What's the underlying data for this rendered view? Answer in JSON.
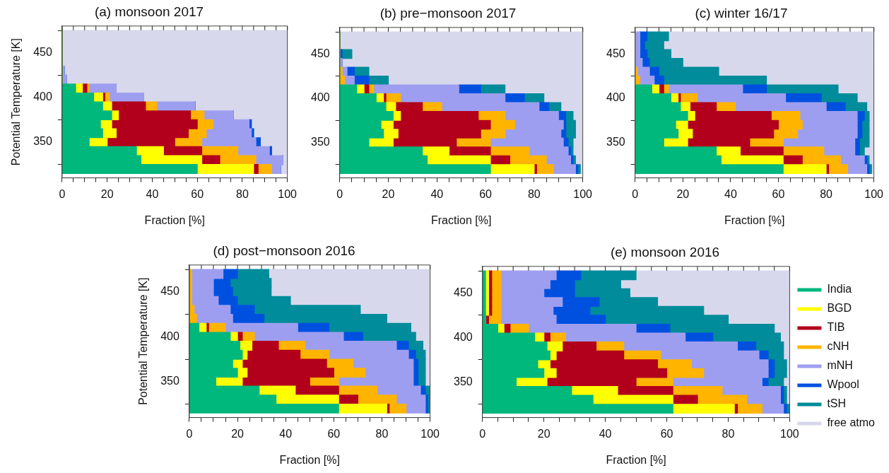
{
  "chart_data": [
    {
      "type": "bar",
      "orientation": "horizontal",
      "stacked": true,
      "title": "(a) monsoon 2017",
      "xlabel": "Fraction [%]",
      "ylabel": "Potential Temperature [K]",
      "x": [
        320,
        330,
        340,
        350,
        360,
        370,
        380,
        390,
        400,
        410,
        420,
        430,
        440,
        450,
        460,
        470
      ],
      "xlim": [
        0,
        100
      ],
      "xticks": [
        0,
        {
          "value": 5,
          "label": null
        },
        20,
        {
          "value": 10,
          "label": null
        },
        {
          "value": 15,
          "label": null
        },
        {
          "value": 25,
          "label": null
        },
        {
          "value": 30,
          "label": null
        },
        {
          "value": 35,
          "label": null
        },
        40,
        {
          "value": 45,
          "label": null
        },
        {
          "value": 50,
          "label": null
        },
        {
          "value": 55,
          "label": null
        },
        60,
        {
          "value": 65,
          "label": null
        },
        {
          "value": 70,
          "label": null
        },
        {
          "value": 75,
          "label": null
        },
        80,
        {
          "value": 85,
          "label": null
        },
        {
          "value": 90,
          "label": null
        },
        {
          "value": 95,
          "label": null
        },
        100
      ],
      "ylim": [
        310,
        480
      ],
      "yticks": [
        350,
        400,
        450
      ],
      "legend": false,
      "series": [
        {
          "color": "#00b77c",
          "values": [
            60,
            35,
            33,
            12,
            18,
            17,
            22,
            18,
            14,
            6,
            0,
            0,
            0,
            0,
            0,
            0
          ]
        },
        {
          "color": "#ffff00",
          "values": [
            25,
            27,
            12,
            8,
            6,
            5,
            3,
            4,
            4,
            3,
            0,
            0,
            0,
            0,
            0,
            0
          ]
        },
        {
          "color": "#b2001c",
          "values": [
            2,
            8,
            17,
            30,
            32,
            38,
            32,
            15,
            1,
            2,
            0,
            0,
            0,
            0,
            0,
            0
          ]
        },
        {
          "color": "#ffb400",
          "values": [
            6,
            16,
            16,
            12,
            8,
            7,
            6,
            5,
            2,
            1,
            0,
            0,
            0,
            0,
            0,
            0
          ]
        },
        {
          "color": "#9e9ef0",
          "values": [
            4,
            12,
            14,
            24,
            20,
            16,
            13,
            17,
            15,
            12,
            2,
            1,
            0,
            0,
            0,
            0
          ]
        },
        {
          "color": "#0050e0",
          "values": [
            0,
            0,
            1,
            2,
            1,
            1,
            0,
            0,
            0,
            0,
            0,
            0,
            0,
            0,
            0,
            0
          ]
        },
        {
          "color": "#008c9a",
          "values": [
            0,
            0,
            0,
            0,
            0,
            0,
            0,
            0,
            0,
            0,
            0,
            0,
            0,
            0,
            0,
            0
          ]
        },
        {
          "color": "#d8d8ec",
          "values": [
            3,
            2,
            7,
            12,
            15,
            16,
            24,
            41,
            64,
            76,
            98,
            99,
            100,
            100,
            100,
            100
          ]
        }
      ]
    },
    {
      "type": "bar",
      "orientation": "horizontal",
      "stacked": true,
      "title": "(b) pre−monsoon 2017",
      "xlabel": "Fraction [%]",
      "x": [
        320,
        330,
        340,
        350,
        360,
        370,
        380,
        390,
        400,
        410,
        420,
        430,
        440,
        450,
        460,
        470
      ],
      "xlim": [
        0,
        100
      ],
      "xticks": [
        0,
        {
          "value": 5,
          "label": null
        },
        20,
        {
          "value": 10,
          "label": null
        },
        {
          "value": 15,
          "label": null
        },
        {
          "value": 25,
          "label": null
        },
        {
          "value": 30,
          "label": null
        },
        {
          "value": 35,
          "label": null
        },
        40,
        {
          "value": 45,
          "label": null
        },
        {
          "value": 50,
          "label": null
        },
        {
          "value": 55,
          "label": null
        },
        60,
        {
          "value": 65,
          "label": null
        },
        {
          "value": 70,
          "label": null
        },
        {
          "value": 75,
          "label": null
        },
        80,
        {
          "value": 85,
          "label": null
        },
        {
          "value": 90,
          "label": null
        },
        {
          "value": 95,
          "label": null
        },
        100
      ],
      "ylim": [
        310,
        480
      ],
      "yticks": [
        350,
        400,
        450
      ],
      "legend": false,
      "series": [
        {
          "color": "#00b77c",
          "values": [
            62,
            36,
            34,
            12,
            18,
            17,
            22,
            19,
            15,
            7,
            0,
            0,
            0,
            0,
            0,
            0
          ]
        },
        {
          "color": "#ffff00",
          "values": [
            18,
            26,
            11,
            10,
            6,
            5,
            3,
            4,
            3,
            3,
            0,
            0,
            0,
            0,
            0,
            0
          ]
        },
        {
          "color": "#b2001c",
          "values": [
            1,
            8,
            17,
            26,
            34,
            40,
            32,
            11,
            1,
            2,
            0,
            0,
            0,
            0,
            0,
            0
          ]
        },
        {
          "color": "#ffb400",
          "values": [
            7,
            15,
            16,
            14,
            10,
            10,
            11,
            8,
            6,
            2,
            2,
            1,
            0,
            0,
            0,
            0
          ]
        },
        {
          "color": "#9e9ef0",
          "values": [
            9,
            10,
            16,
            30,
            23,
            20,
            22,
            40,
            43,
            35,
            4,
            2,
            1,
            0,
            0,
            0
          ]
        },
        {
          "color": "#0050e0",
          "values": [
            1,
            1,
            1,
            2,
            2,
            1,
            3,
            4,
            8,
            9,
            6,
            3,
            0,
            1,
            0,
            0
          ]
        },
        {
          "color": "#008c9a",
          "values": [
            1,
            1,
            1,
            2,
            4,
            4,
            3,
            5,
            8,
            10,
            8,
            6,
            0,
            4,
            0,
            0
          ]
        },
        {
          "color": "#d8d8ec",
          "values": [
            1,
            3,
            4,
            4,
            3,
            3,
            4,
            9,
            16,
            32,
            80,
            88,
            99,
            95,
            100,
            100
          ]
        }
      ]
    },
    {
      "type": "bar",
      "orientation": "horizontal",
      "stacked": true,
      "title": "(c) winter 16/17",
      "xlabel": "Fraction [%]",
      "x": [
        320,
        330,
        340,
        350,
        360,
        370,
        380,
        390,
        400,
        410,
        420,
        430,
        440,
        450,
        460,
        470
      ],
      "xlim": [
        0,
        100
      ],
      "xticks": [
        0,
        {
          "value": 5,
          "label": null
        },
        20,
        {
          "value": 10,
          "label": null
        },
        {
          "value": 15,
          "label": null
        },
        {
          "value": 25,
          "label": null
        },
        {
          "value": 30,
          "label": null
        },
        {
          "value": 35,
          "label": null
        },
        40,
        {
          "value": 45,
          "label": null
        },
        {
          "value": 50,
          "label": null
        },
        {
          "value": 55,
          "label": null
        },
        60,
        {
          "value": 65,
          "label": null
        },
        {
          "value": 70,
          "label": null
        },
        {
          "value": 75,
          "label": null
        },
        80,
        {
          "value": 85,
          "label": null
        },
        {
          "value": 90,
          "label": null
        },
        {
          "value": 95,
          "label": null
        },
        100
      ],
      "ylim": [
        310,
        480
      ],
      "yticks": [
        350,
        400,
        450
      ],
      "legend": false,
      "series": [
        {
          "color": "#00b77c",
          "values": [
            62,
            36,
            34,
            12,
            18,
            17,
            22,
            19,
            15,
            7,
            0,
            0,
            0,
            0,
            0,
            0
          ]
        },
        {
          "color": "#ffff00",
          "values": [
            18,
            26,
            10,
            10,
            6,
            5,
            3,
            4,
            3,
            3,
            0,
            0,
            0,
            0,
            0,
            0
          ]
        },
        {
          "color": "#b2001c",
          "values": [
            1,
            8,
            18,
            26,
            34,
            38,
            32,
            11,
            1,
            2,
            0,
            0,
            0,
            0,
            0,
            0
          ]
        },
        {
          "color": "#ffb400",
          "values": [
            8,
            16,
            17,
            14,
            10,
            10,
            12,
            8,
            7,
            2,
            2,
            1,
            0,
            0,
            0,
            0
          ]
        },
        {
          "color": "#9e9ef0",
          "values": [
            8,
            10,
            13,
            30,
            25,
            23,
            24,
            38,
            37,
            31,
            6,
            5,
            3,
            2,
            2,
            2
          ]
        },
        {
          "color": "#0050e0",
          "values": [
            1,
            1,
            2,
            2,
            2,
            2,
            3,
            8,
            15,
            10,
            4,
            4,
            3,
            3,
            2,
            3
          ]
        },
        {
          "color": "#008c9a",
          "values": [
            1,
            1,
            2,
            4,
            3,
            3,
            2,
            9,
            15,
            30,
            43,
            25,
            14,
            10,
            8,
            9
          ]
        },
        {
          "color": "#d8d8ec",
          "values": [
            1,
            2,
            4,
            2,
            2,
            2,
            2,
            3,
            7,
            15,
            45,
            65,
            80,
            85,
            88,
            86
          ]
        }
      ]
    },
    {
      "type": "bar",
      "orientation": "horizontal",
      "stacked": true,
      "title": "(d) post−monsoon 2016",
      "xlabel": "Fraction [%]",
      "ylabel": "Potential Temperature [K]",
      "x": [
        320,
        330,
        340,
        350,
        360,
        370,
        380,
        390,
        400,
        410,
        420,
        430,
        440,
        450,
        460,
        470
      ],
      "xlim": [
        0,
        100
      ],
      "xticks": [
        0,
        {
          "value": 5,
          "label": null
        },
        20,
        {
          "value": 10,
          "label": null
        },
        {
          "value": 15,
          "label": null
        },
        {
          "value": 25,
          "label": null
        },
        {
          "value": 30,
          "label": null
        },
        {
          "value": 35,
          "label": null
        },
        40,
        {
          "value": 45,
          "label": null
        },
        {
          "value": 50,
          "label": null
        },
        {
          "value": 55,
          "label": null
        },
        60,
        {
          "value": 65,
          "label": null
        },
        {
          "value": 70,
          "label": null
        },
        {
          "value": 75,
          "label": null
        },
        80,
        {
          "value": 85,
          "label": null
        },
        {
          "value": 90,
          "label": null
        },
        {
          "value": 95,
          "label": null
        },
        100
      ],
      "ylim": [
        310,
        480
      ],
      "yticks": [
        350,
        400,
        450
      ],
      "legend": false,
      "series": [
        {
          "color": "#00b77c",
          "values": [
            62,
            36,
            29,
            11,
            20,
            18,
            22,
            21,
            17,
            4,
            0,
            0,
            0,
            0,
            0,
            0
          ]
        },
        {
          "color": "#ffff00",
          "values": [
            20,
            26,
            15,
            11,
            4,
            4,
            2,
            5,
            3,
            3,
            0,
            0,
            0,
            0,
            0,
            0
          ]
        },
        {
          "color": "#b2001c",
          "values": [
            1,
            8,
            18,
            28,
            36,
            35,
            22,
            11,
            2,
            1,
            0,
            0,
            0,
            0,
            0,
            0
          ]
        },
        {
          "color": "#ffb400",
          "values": [
            7,
            16,
            16,
            12,
            13,
            11,
            12,
            11,
            5,
            7,
            3,
            2,
            1,
            1,
            1,
            1
          ]
        },
        {
          "color": "#9e9ef0",
          "values": [
            8,
            12,
            18,
            31,
            20,
            25,
            33,
            38,
            37,
            30,
            15,
            15,
            11,
            9,
            9,
            13
          ]
        },
        {
          "color": "#0050e0",
          "values": [
            1,
            1,
            2,
            2,
            2,
            2,
            3,
            5,
            8,
            13,
            13,
            10,
            8,
            8,
            7,
            6
          ]
        },
        {
          "color": "#008c9a",
          "values": [
            1,
            1,
            2,
            3,
            3,
            3,
            4,
            6,
            22,
            34,
            51,
            44,
            22,
            16,
            17,
            13
          ]
        },
        {
          "color": "#d8d8ec",
          "values": [
            0,
            0,
            0,
            2,
            2,
            2,
            2,
            3,
            6,
            8,
            18,
            29,
            58,
            66,
            66,
            67
          ]
        }
      ]
    },
    {
      "type": "bar",
      "orientation": "horizontal",
      "stacked": true,
      "title": "(e) monsoon 2016",
      "xlabel": "Fraction [%]",
      "x": [
        320,
        330,
        340,
        350,
        360,
        370,
        380,
        390,
        400,
        410,
        420,
        430,
        440,
        450,
        460,
        470
      ],
      "xlim": [
        0,
        100
      ],
      "xticks": [
        0,
        {
          "value": 5,
          "label": null
        },
        20,
        {
          "value": 10,
          "label": null
        },
        {
          "value": 15,
          "label": null
        },
        {
          "value": 25,
          "label": null
        },
        {
          "value": 30,
          "label": null
        },
        {
          "value": 35,
          "label": null
        },
        40,
        {
          "value": 45,
          "label": null
        },
        {
          "value": 50,
          "label": null
        },
        {
          "value": 55,
          "label": null
        },
        60,
        {
          "value": 65,
          "label": null
        },
        {
          "value": 70,
          "label": null
        },
        {
          "value": 75,
          "label": null
        },
        80,
        {
          "value": 85,
          "label": null
        },
        {
          "value": 90,
          "label": null
        },
        {
          "value": 95,
          "label": null
        },
        100
      ],
      "ylim": [
        310,
        480
      ],
      "yticks": [
        350,
        400,
        450
      ],
      "legend": "right",
      "series": [
        {
          "name": "India",
          "color": "#00b77c",
          "values": [
            62,
            36,
            29,
            11,
            20,
            18,
            22,
            21,
            17,
            5,
            1,
            1,
            1,
            1,
            1,
            1
          ]
        },
        {
          "name": "BGD",
          "color": "#ffff00",
          "values": [
            20,
            26,
            15,
            10,
            4,
            4,
            2,
            5,
            3,
            2,
            0,
            1,
            1,
            1,
            1,
            1
          ]
        },
        {
          "name": "TIB",
          "color": "#b2001c",
          "values": [
            1,
            8,
            18,
            29,
            36,
            35,
            22,
            11,
            2,
            2,
            1,
            1,
            1,
            1,
            1,
            1
          ]
        },
        {
          "name": "cNH",
          "color": "#ffb400",
          "values": [
            8,
            16,
            16,
            12,
            12,
            11,
            12,
            9,
            5,
            6,
            4,
            3,
            3,
            3,
            3,
            3
          ]
        },
        {
          "name": "mNH",
          "color": "#9e9ef0",
          "values": [
            7,
            11,
            19,
            29,
            21,
            25,
            32,
            37,
            39,
            35,
            18,
            17,
            20,
            14,
            16,
            18
          ]
        },
        {
          "name": "Wpool",
          "color": "#0050e0",
          "values": [
            1,
            1,
            1,
            2,
            2,
            2,
            3,
            6,
            9,
            11,
            16,
            12,
            12,
            10,
            8,
            8
          ]
        },
        {
          "name": "tSH",
          "color": "#008c9a",
          "values": [
            1,
            1,
            1,
            5,
            4,
            4,
            5,
            9,
            22,
            34,
            40,
            37,
            19,
            18,
            15,
            18
          ]
        },
        {
          "name": "free atmo",
          "color": "#d8d8ec",
          "values": [
            0,
            1,
            1,
            2,
            1,
            1,
            2,
            2,
            3,
            5,
            20,
            28,
            43,
            52,
            55,
            50
          ]
        }
      ]
    }
  ]
}
